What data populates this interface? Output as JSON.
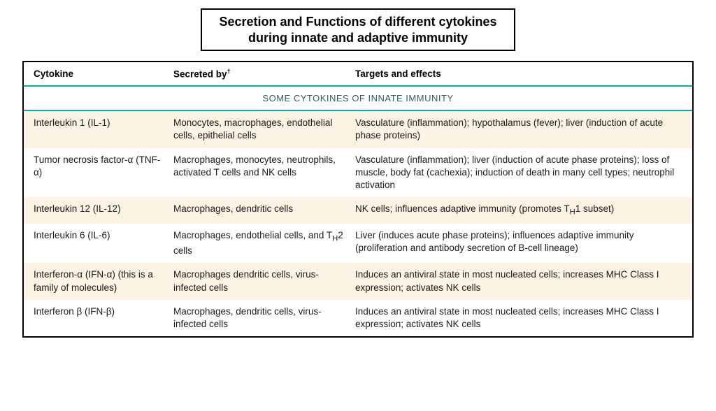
{
  "title": {
    "line1": "Secretion and Functions of different cytokines",
    "line2": "during innate and adaptive immunity"
  },
  "colors": {
    "teal_rule": "#17a99a",
    "row_shade": "#fdf3e4",
    "row_plain": "#ffffff",
    "text": "#1a1a1a",
    "section_text": "#3a5a5a"
  },
  "headers": {
    "c0": "Cytokine",
    "c1_pre": "Secreted by",
    "c1_sup": "†",
    "c2": "Targets and effects"
  },
  "section_label": "SOME CYTOKINES OF INNATE IMMUNITY",
  "rows": [
    {
      "cytokine": "Interleukin 1 (IL-1)",
      "secreted": "Monocytes, macrophages, endothelial cells, epithelial cells",
      "targets": "Vasculature (inflammation); hypothalamus (fever); liver (induction of acute phase proteins)",
      "shaded": true
    },
    {
      "cytokine": "Tumor necrosis factor-α (TNF-α)",
      "secreted": "Macrophages, monocytes, neutrophils, activated T cells and NK cells",
      "targets": "Vasculature (inflammation); liver (induction of acute phase proteins); loss of muscle, body fat (cachexia); induction of death in many cell types; neutrophil activation",
      "shaded": false
    },
    {
      "cytokine": "Interleukin 12 (IL-12)",
      "secreted": "Macrophages, dendritic cells",
      "targets_pre": "NK cells; influences adaptive immunity (promotes T",
      "targets_sub": "H",
      "targets_post": "1 subset)",
      "shaded": true
    },
    {
      "cytokine": "Interleukin 6 (IL-6)",
      "secreted_pre": "Macrophages, endothelial cells, and T",
      "secreted_sub": "H",
      "secreted_post": "2 cells",
      "targets": "Liver (induces acute phase proteins); influences adaptive immunity (proliferation and antibody secretion of B-cell lineage)",
      "shaded": false
    },
    {
      "cytokine": "Interferon-α (IFN-α) (this is a family of molecules)",
      "secreted": "Macrophages dendritic cells, virus-infected cells",
      "targets": "Induces an antiviral state in most nucleated cells; increases MHC Class I expression; activates NK cells",
      "shaded": true
    },
    {
      "cytokine": "Interferon β (IFN-β)",
      "secreted": "Macrophages, dendritic cells, virus-infected cells",
      "targets": "Induces an antiviral state in most nucleated cells; increases MHC Class I expression; activates NK cells",
      "shaded": false
    }
  ]
}
